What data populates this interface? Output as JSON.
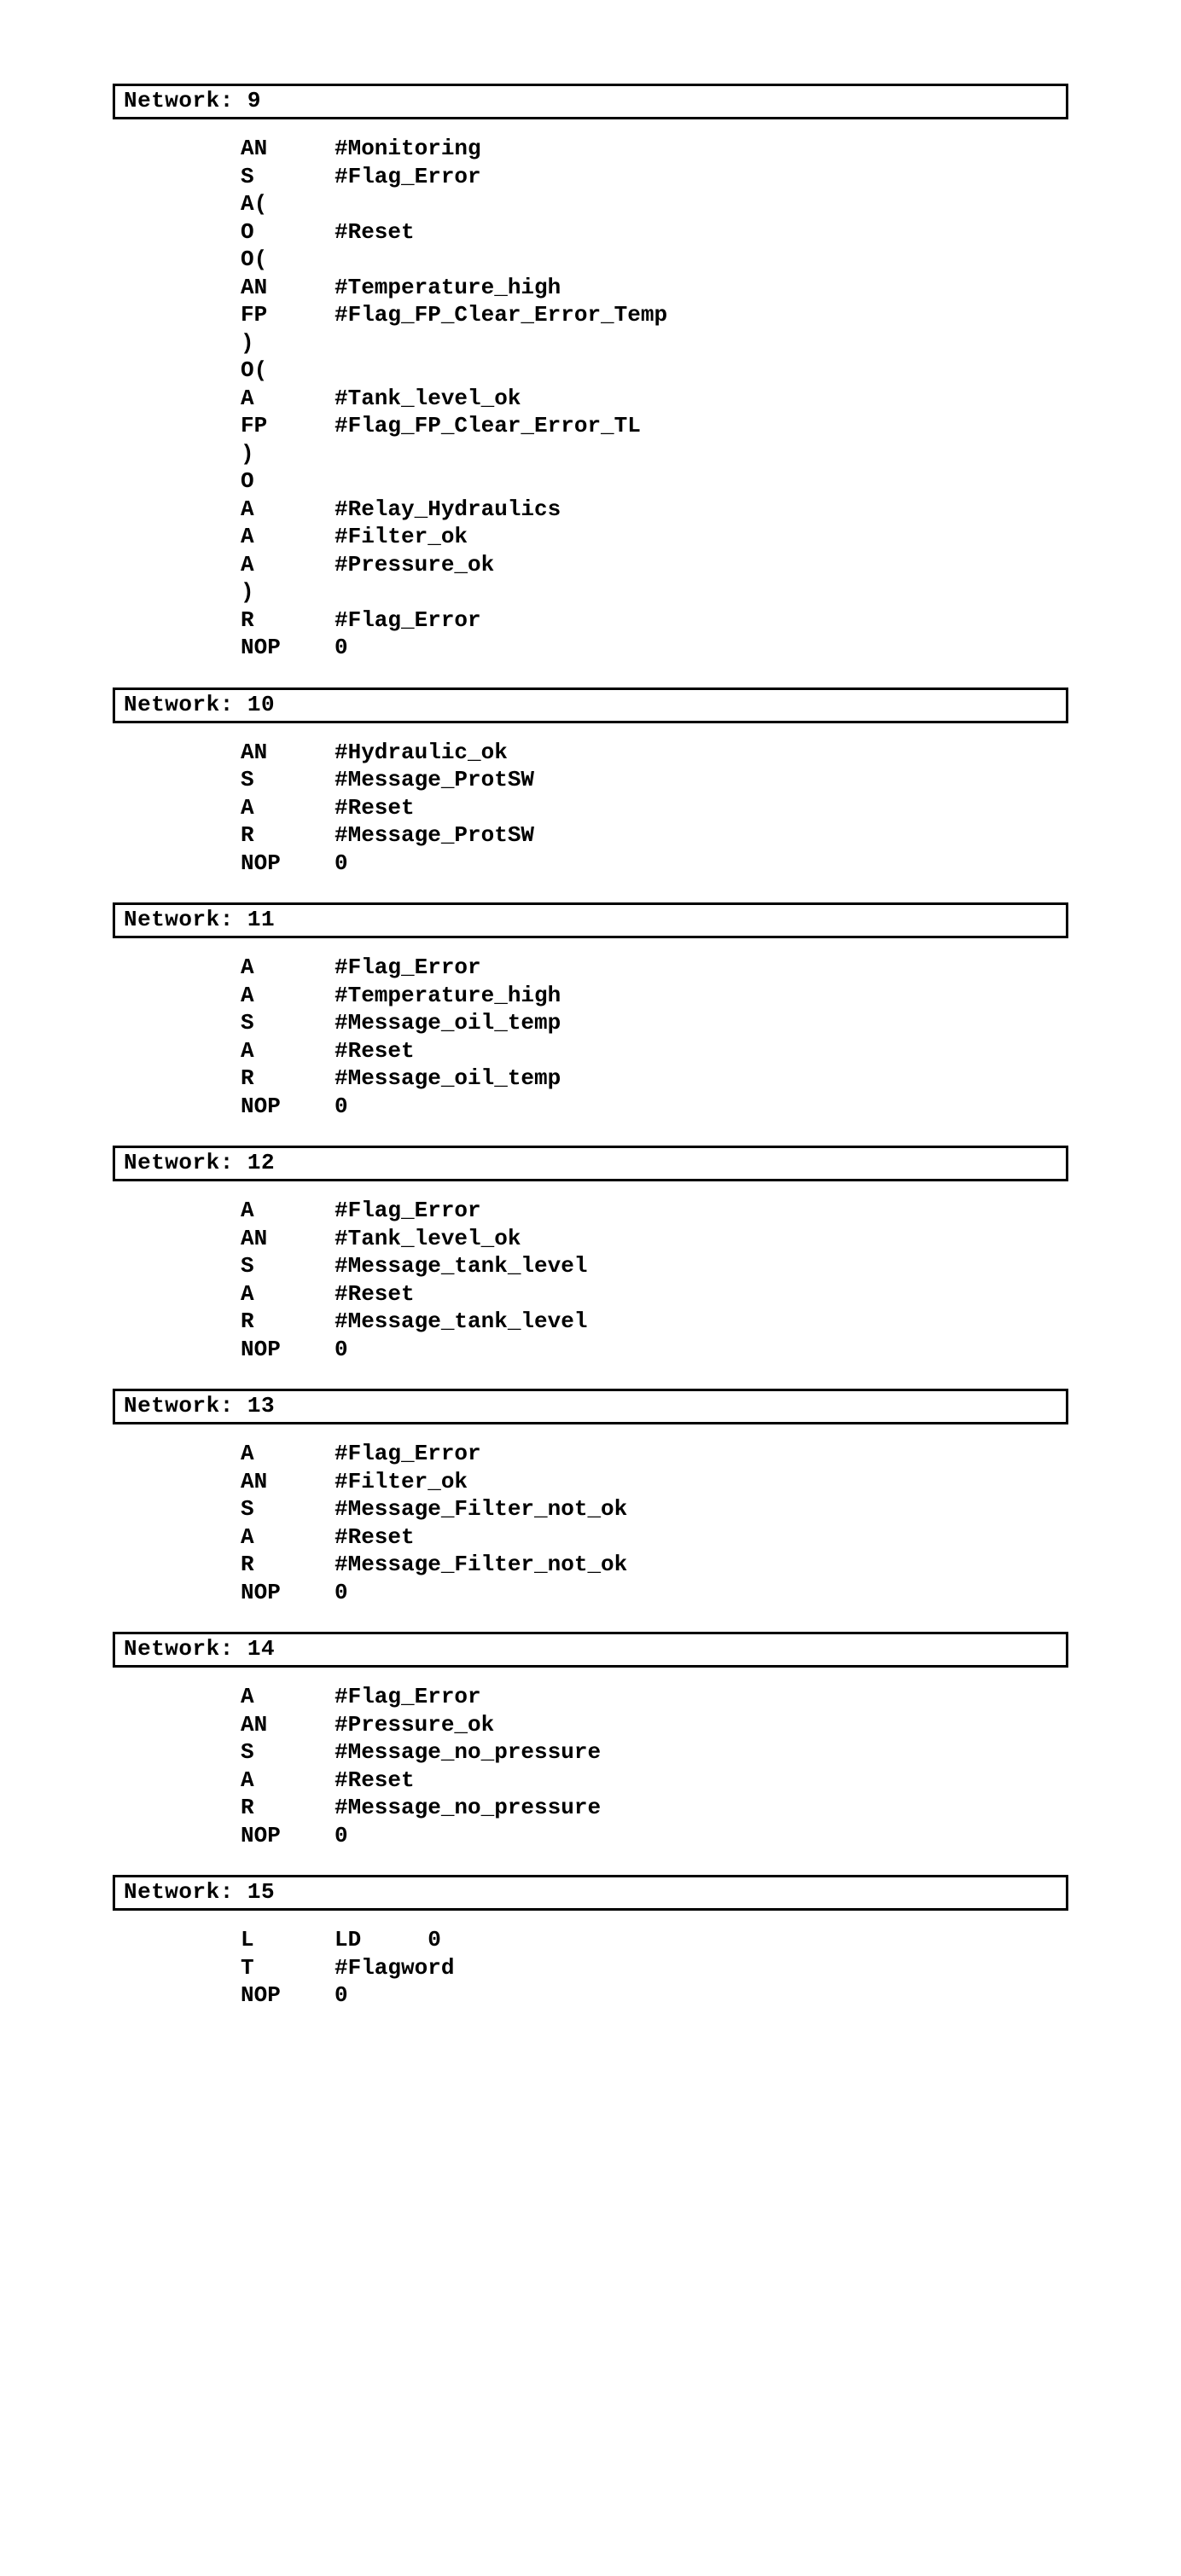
{
  "networks": [
    {
      "title": "Network: 9",
      "lines": [
        {
          "op": "AN",
          "arg": "#Monitoring"
        },
        {
          "op": "S",
          "arg": "#Flag_Error"
        },
        {
          "op": "A(",
          "arg": ""
        },
        {
          "op": "O",
          "arg": "#Reset"
        },
        {
          "op": "O(",
          "arg": ""
        },
        {
          "op": "AN",
          "arg": "#Temperature_high"
        },
        {
          "op": "FP",
          "arg": "#Flag_FP_Clear_Error_Temp"
        },
        {
          "op": ")",
          "arg": ""
        },
        {
          "op": "O(",
          "arg": ""
        },
        {
          "op": "A",
          "arg": "#Tank_level_ok"
        },
        {
          "op": "FP",
          "arg": "#Flag_FP_Clear_Error_TL"
        },
        {
          "op": ")",
          "arg": ""
        },
        {
          "op": "O",
          "arg": ""
        },
        {
          "op": "A",
          "arg": "#Relay_Hydraulics"
        },
        {
          "op": "A",
          "arg": "#Filter_ok"
        },
        {
          "op": "A",
          "arg": "#Pressure_ok"
        },
        {
          "op": ")",
          "arg": ""
        },
        {
          "op": "R",
          "arg": "#Flag_Error"
        },
        {
          "op": "NOP",
          "arg": "0"
        }
      ]
    },
    {
      "title": "Network: 10",
      "lines": [
        {
          "op": "AN",
          "arg": "#Hydraulic_ok"
        },
        {
          "op": "S",
          "arg": "#Message_ProtSW"
        },
        {
          "op": "A",
          "arg": "#Reset"
        },
        {
          "op": "R",
          "arg": "#Message_ProtSW"
        },
        {
          "op": "NOP",
          "arg": "0"
        }
      ]
    },
    {
      "title": "Network: 11",
      "lines": [
        {
          "op": "A",
          "arg": "#Flag_Error"
        },
        {
          "op": "A",
          "arg": "#Temperature_high"
        },
        {
          "op": "S",
          "arg": "#Message_oil_temp"
        },
        {
          "op": "A",
          "arg": "#Reset"
        },
        {
          "op": "R",
          "arg": "#Message_oil_temp"
        },
        {
          "op": "NOP",
          "arg": "0"
        }
      ]
    },
    {
      "title": "Network: 12",
      "lines": [
        {
          "op": "A",
          "arg": "#Flag_Error"
        },
        {
          "op": "AN",
          "arg": "#Tank_level_ok"
        },
        {
          "op": "S",
          "arg": "#Message_tank_level"
        },
        {
          "op": "A",
          "arg": "#Reset"
        },
        {
          "op": "R",
          "arg": "#Message_tank_level"
        },
        {
          "op": "NOP",
          "arg": "0"
        }
      ]
    },
    {
      "title": "Network: 13",
      "lines": [
        {
          "op": "A",
          "arg": "#Flag_Error"
        },
        {
          "op": "AN",
          "arg": "#Filter_ok"
        },
        {
          "op": "S",
          "arg": "#Message_Filter_not_ok"
        },
        {
          "op": "A",
          "arg": "#Reset"
        },
        {
          "op": "R",
          "arg": "#Message_Filter_not_ok"
        },
        {
          "op": "NOP",
          "arg": "0"
        }
      ]
    },
    {
      "title": "Network: 14",
      "lines": [
        {
          "op": "A",
          "arg": "#Flag_Error"
        },
        {
          "op": "AN",
          "arg": "#Pressure_ok"
        },
        {
          "op": "S",
          "arg": "#Message_no_pressure"
        },
        {
          "op": "A",
          "arg": "#Reset"
        },
        {
          "op": "R",
          "arg": "#Message_no_pressure"
        },
        {
          "op": "NOP",
          "arg": "0"
        }
      ]
    },
    {
      "title": "Network: 15",
      "lines": [
        {
          "op": "L",
          "arg": "LD     0"
        },
        {
          "op": "T",
          "arg": "#Flagword"
        },
        {
          "op": "NOP",
          "arg": "0"
        }
      ]
    }
  ]
}
